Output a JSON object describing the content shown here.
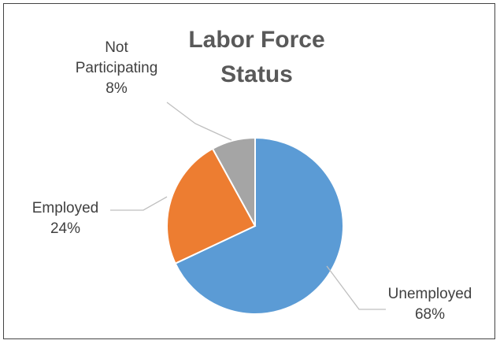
{
  "chart_data": {
    "type": "pie",
    "title": "Labor Force Status",
    "title_lines": [
      "Labor Force",
      "Status"
    ],
    "slices": [
      {
        "name": "Unemployed",
        "value": 68,
        "label_lines": [
          "Unemployed"
        ],
        "value_label": "68%",
        "color": "#5b9bd5"
      },
      {
        "name": "Employed",
        "value": 24,
        "label_lines": [
          "Employed"
        ],
        "value_label": "24%",
        "color": "#ed7d31"
      },
      {
        "name": "Not Participating",
        "value": 8,
        "label_lines": [
          "Not",
          "Participating"
        ],
        "value_label": "8%",
        "color": "#a5a5a5"
      }
    ],
    "legend": "none",
    "data_labels": "outside-with-leader-lines"
  }
}
